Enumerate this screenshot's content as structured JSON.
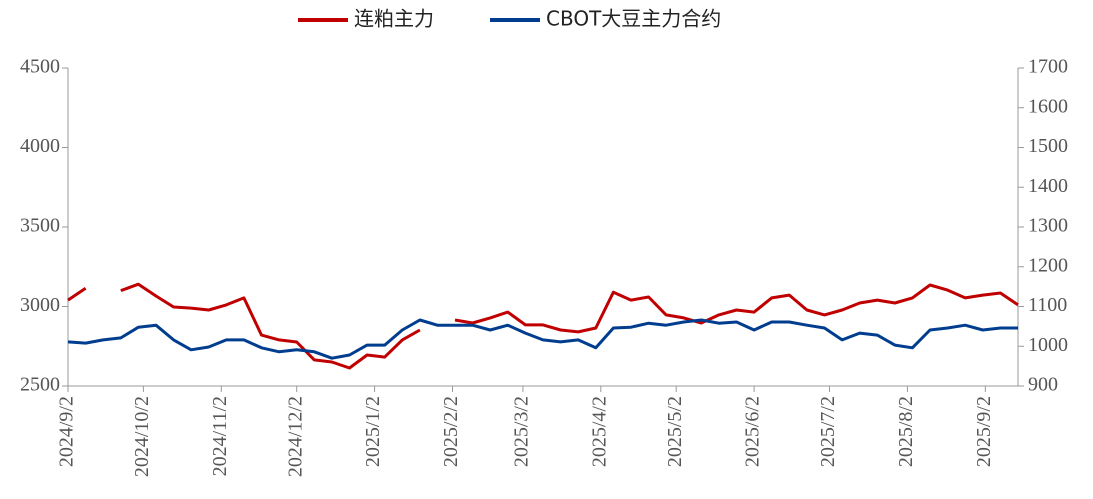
{
  "chart_data": {
    "type": "line",
    "x": [
      "2024/9/2",
      "2024/9/9",
      "2024/9/16",
      "2024/9/23",
      "2024/9/30",
      "2024/10/7",
      "2024/10/14",
      "2024/10/21",
      "2024/10/28",
      "2024/11/4",
      "2024/11/11",
      "2024/11/18",
      "2024/11/25",
      "2024/12/2",
      "2024/12/9",
      "2024/12/16",
      "2024/12/23",
      "2024/12/30",
      "2025/1/6",
      "2025/1/13",
      "2025/1/20",
      "2025/1/27",
      "2025/2/3",
      "2025/2/10",
      "2025/2/17",
      "2025/2/24",
      "2025/3/3",
      "2025/3/10",
      "2025/3/17",
      "2025/3/24",
      "2025/3/31",
      "2025/4/7",
      "2025/4/14",
      "2025/4/21",
      "2025/4/28",
      "2025/5/5",
      "2025/5/12",
      "2025/5/19",
      "2025/5/26",
      "2025/6/2",
      "2025/6/9",
      "2025/6/16",
      "2025/6/23",
      "2025/6/30",
      "2025/7/7",
      "2025/7/14",
      "2025/7/21",
      "2025/7/28",
      "2025/8/4",
      "2025/8/11",
      "2025/8/18",
      "2025/8/25",
      "2025/9/1",
      "2025/9/8",
      "2025/9/15"
    ],
    "xlim": [
      "2024/9/2",
      "2025/9/15"
    ],
    "xticks": [
      "2024/9/2",
      "2024/10/2",
      "2024/11/2",
      "2024/12/2",
      "2025/1/2",
      "2025/2/2",
      "2025/3/2",
      "2025/4/2",
      "2025/5/2",
      "2025/6/2",
      "2025/7/2",
      "2025/8/2",
      "2025/9/2"
    ],
    "series": [
      {
        "name": "连粕主力",
        "color": "#c00000",
        "values": [
          3040,
          3115,
          null,
          3100,
          3140,
          3066,
          2997,
          2990,
          2978,
          3010,
          3054,
          2820,
          2790,
          2777,
          2664,
          2651,
          2613,
          2695,
          2682,
          2790,
          2852,
          null,
          2915,
          2896,
          2928,
          2965,
          2884,
          2884,
          2852,
          2840,
          2865,
          3090,
          3040,
          3060,
          2947,
          2928,
          2896,
          2947,
          2978,
          2965,
          3054,
          3072,
          2978,
          2947,
          2978,
          3022,
          3040,
          3022,
          3054,
          3135,
          3103,
          3054,
          3072,
          3085,
          3010
        ]
      },
      {
        "name": "CBOT大豆主力合约",
        "color": "#003d8f",
        "axis": "y2",
        "values": [
          1011,
          1008,
          1016,
          1021,
          1048,
          1053,
          1016,
          991,
          998,
          1016,
          1016,
          996,
          986,
          991,
          986,
          970,
          978,
          1003,
          1003,
          1041,
          1066,
          1053,
          1053,
          1053,
          1041,
          1053,
          1033,
          1016,
          1011,
          1016,
          996,
          1046,
          1048,
          1058,
          1053,
          1061,
          1066,
          1058,
          1061,
          1041,
          1061,
          1061,
          1053,
          1046,
          1016,
          1033,
          1028,
          1003,
          996,
          1041,
          1046,
          1053,
          1041,
          1046,
          1046
        ]
      }
    ],
    "ylim": [
      2500,
      4500
    ],
    "yticks": [
      2500,
      3000,
      3500,
      4000,
      4500
    ],
    "y2lim": [
      900,
      1700
    ],
    "y2ticks": [
      900,
      1000,
      1100,
      1200,
      1300,
      1400,
      1500,
      1600,
      1700
    ],
    "legend": "top"
  }
}
